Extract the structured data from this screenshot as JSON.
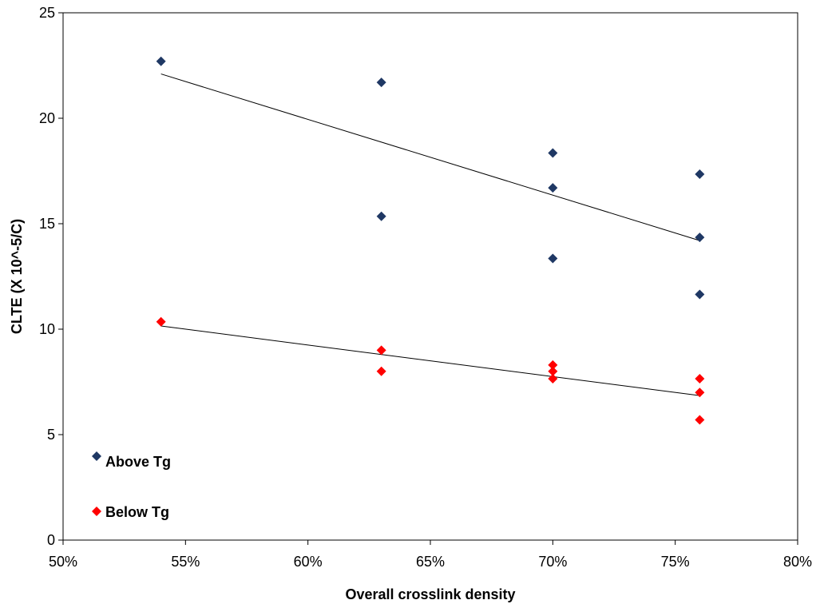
{
  "chart_data": {
    "type": "scatter",
    "title": "",
    "xlabel": "Overall crosslink density",
    "ylabel": "CLTE (X 10^-5/C)",
    "xlim": [
      0.5,
      0.8
    ],
    "ylim": [
      0,
      25
    ],
    "x_ticks": [
      0.5,
      0.55,
      0.6,
      0.65,
      0.7,
      0.75,
      0.8
    ],
    "x_tick_labels": [
      "50%",
      "55%",
      "60%",
      "65%",
      "70%",
      "75%",
      "80%"
    ],
    "y_ticks": [
      0,
      5,
      10,
      15,
      20,
      25
    ],
    "y_tick_labels": [
      "0",
      "5",
      "10",
      "15",
      "20",
      "25"
    ],
    "grid": false,
    "legend_position": "bottom-left",
    "series": [
      {
        "name": "Above Tg",
        "color": "#1F3864",
        "marker": "diamond",
        "points": [
          {
            "x": 0.54,
            "y": 22.7
          },
          {
            "x": 0.63,
            "y": 21.7
          },
          {
            "x": 0.63,
            "y": 15.35
          },
          {
            "x": 0.7,
            "y": 18.35
          },
          {
            "x": 0.7,
            "y": 16.7
          },
          {
            "x": 0.7,
            "y": 13.35
          },
          {
            "x": 0.76,
            "y": 17.35
          },
          {
            "x": 0.76,
            "y": 14.35
          },
          {
            "x": 0.76,
            "y": 11.65
          }
        ],
        "trendline": {
          "x": [
            0.54,
            0.76
          ],
          "y": [
            22.1,
            14.2
          ]
        }
      },
      {
        "name": "Below Tg",
        "color": "#FF0000",
        "marker": "diamond",
        "points": [
          {
            "x": 0.54,
            "y": 10.35
          },
          {
            "x": 0.63,
            "y": 9.0
          },
          {
            "x": 0.63,
            "y": 8.0
          },
          {
            "x": 0.7,
            "y": 8.3
          },
          {
            "x": 0.7,
            "y": 8.0
          },
          {
            "x": 0.7,
            "y": 7.65
          },
          {
            "x": 0.76,
            "y": 7.65
          },
          {
            "x": 0.76,
            "y": 7.0
          },
          {
            "x": 0.76,
            "y": 5.7
          }
        ],
        "trendline": {
          "x": [
            0.54,
            0.76
          ],
          "y": [
            10.15,
            6.85
          ]
        }
      }
    ]
  }
}
